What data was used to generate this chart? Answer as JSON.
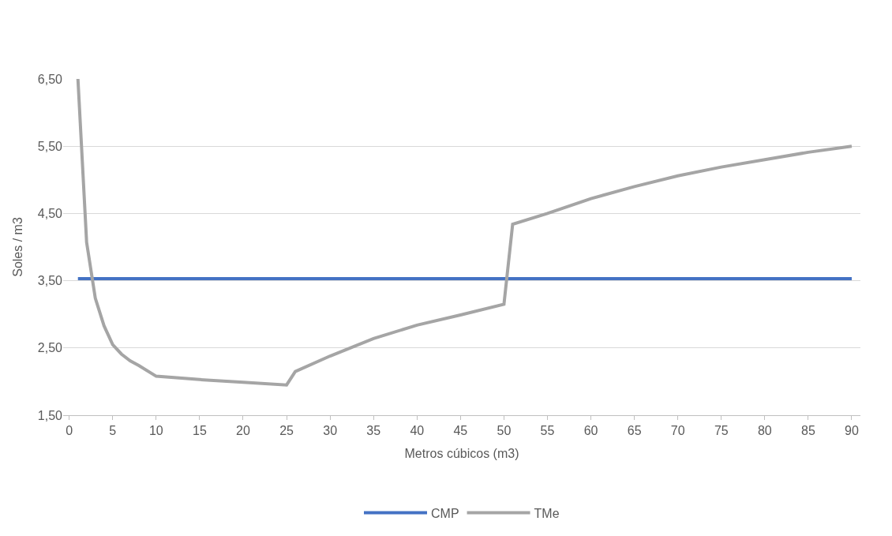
{
  "chart_data": {
    "type": "line",
    "xlabel": "Metros cúbicos (m3)",
    "ylabel": "Soles / m3",
    "xlim": [
      -0.7,
      91
    ],
    "xticks": [
      0,
      5,
      10,
      15,
      20,
      25,
      30,
      35,
      40,
      45,
      50,
      55,
      60,
      65,
      70,
      75,
      80,
      85,
      90
    ],
    "ylim": [
      1.5,
      6.5
    ],
    "yticks": [
      {
        "value": 1.5,
        "label": "1,50"
      },
      {
        "value": 2.5,
        "label": "2,50"
      },
      {
        "value": 3.5,
        "label": "3,50"
      },
      {
        "value": 4.5,
        "label": "4,50"
      },
      {
        "value": 5.5,
        "label": "5,50"
      },
      {
        "value": 6.5,
        "label": "6,50"
      }
    ],
    "grid": "y",
    "legend": "bottom",
    "marker": "none",
    "line_style": "solid",
    "series": [
      {
        "name": "CMP",
        "color": "#4472c4",
        "x": [
          1,
          90
        ],
        "values": [
          3.53,
          3.53
        ]
      },
      {
        "name": "TMe",
        "color": "#a5a5a5",
        "x": [
          1,
          2,
          3,
          4,
          5,
          6,
          7,
          8,
          10,
          15,
          20,
          25,
          26,
          30,
          35,
          40,
          45,
          50,
          51,
          55,
          60,
          65,
          70,
          75,
          80,
          85,
          90
        ],
        "values": [
          6.5,
          4.07,
          3.24,
          2.83,
          2.55,
          2.41,
          2.31,
          2.24,
          2.08,
          2.03,
          1.99,
          1.95,
          2.15,
          2.38,
          2.64,
          2.84,
          2.99,
          3.15,
          4.34,
          4.5,
          4.72,
          4.9,
          5.06,
          5.19,
          5.3,
          5.41,
          5.5
        ]
      }
    ]
  }
}
